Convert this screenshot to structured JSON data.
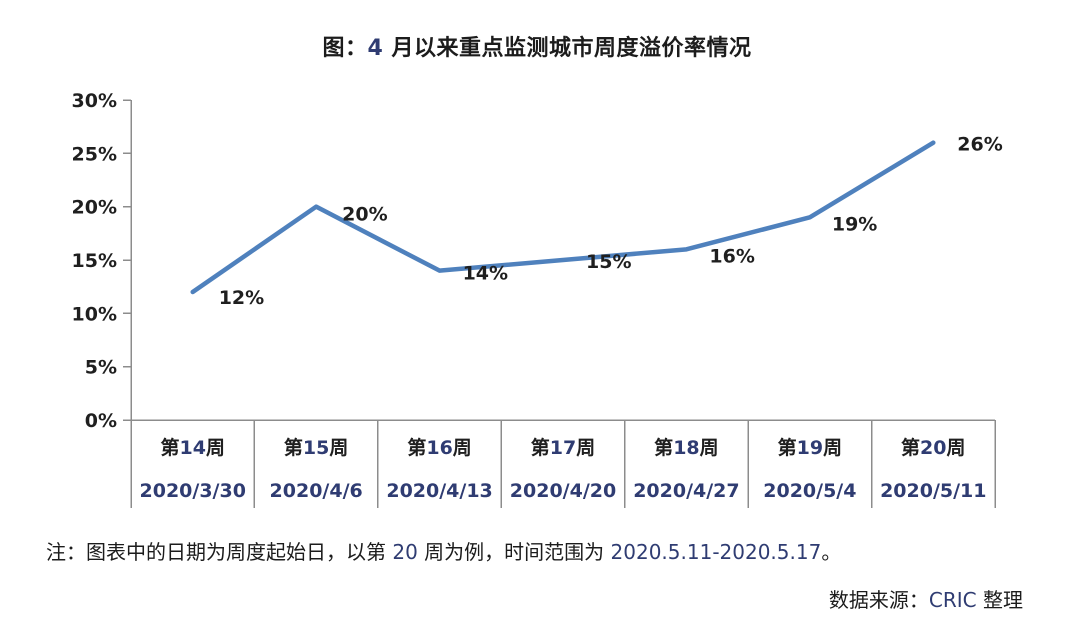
{
  "title": "图：4 月以来重点监测城市周度溢价率情况",
  "note": "注：图表中的日期为周度起始日，以第 20 周为例，时间范围为 2020.5.11-2020.5.17。",
  "source": "数据来源：CRIC 整理",
  "chart_data": {
    "type": "line",
    "title": "图：4 月以来重点监测城市周度溢价率情况",
    "categories_week": [
      "第14周",
      "第15周",
      "第16周",
      "第17周",
      "第18周",
      "第19周",
      "第20周"
    ],
    "categories_date": [
      "2020/3/30",
      "2020/4/6",
      "2020/4/13",
      "2020/4/20",
      "2020/4/27",
      "2020/5/4",
      "2020/5/11"
    ],
    "values": [
      12,
      20,
      14,
      15,
      16,
      19,
      26
    ],
    "point_labels": [
      "12%",
      "20%",
      "14%",
      "15%",
      "16%",
      "19%",
      "26%"
    ],
    "y_ticks": [
      "30%",
      "25%",
      "20%",
      "15%",
      "10%",
      "5%",
      "0%"
    ],
    "ylim": [
      0,
      30
    ],
    "y_tick_step": 5,
    "xlabel": "",
    "ylabel": "",
    "grid": false,
    "legend": "none",
    "colors": {
      "line": "#4F81BD",
      "axis": "#8c8c8c",
      "text": "#1f1f1f",
      "digit_text": "#2f3c72"
    }
  }
}
